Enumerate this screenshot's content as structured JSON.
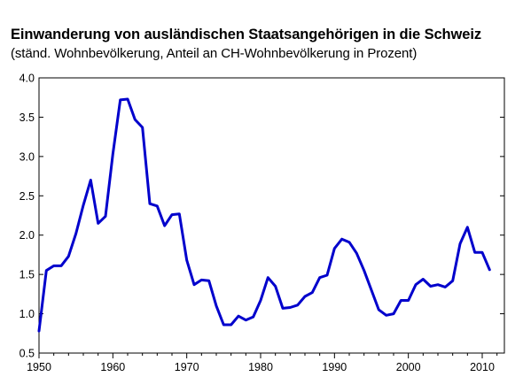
{
  "chart_data": {
    "type": "line",
    "title": "Einwanderung von ausländischen Staatsangehörigen  in die Schweiz",
    "subtitle": "(ständ. Wohnbevölkerung, Anteil an CH-Wohnbevölkerung in Prozent)",
    "xlabel": "",
    "ylabel": "",
    "xlim": [
      1950,
      2013
    ],
    "ylim": [
      0.5,
      4.0
    ],
    "x_ticks": [
      "1950",
      "1960",
      "1970",
      "1980",
      "1990",
      "2000",
      "2010"
    ],
    "y_ticks": [
      "0.5",
      "1.0",
      "1.5",
      "2.0",
      "2.5",
      "3.0",
      "3.5",
      "4.0"
    ],
    "grid": false,
    "legend": "none",
    "line_color": "#0000cc",
    "series": [
      {
        "x": [
          1950,
          1951,
          1952,
          1953,
          1954,
          1955,
          1956,
          1957,
          1958,
          1959,
          1960,
          1961,
          1962,
          1963,
          1964,
          1965,
          1966,
          1967,
          1968,
          1969,
          1970,
          1971,
          1972,
          1973,
          1974,
          1975,
          1976,
          1977,
          1978,
          1979,
          1980,
          1981,
          1982,
          1983,
          1984,
          1985,
          1986,
          1987,
          1988,
          1989,
          1990,
          1991,
          1992,
          1993,
          1994,
          1995,
          1996,
          1997,
          1998,
          1999,
          2000,
          2001,
          2002,
          2003,
          2004,
          2005,
          2006,
          2007,
          2008,
          2009,
          2010,
          2011
        ],
        "values": [
          0.78,
          1.55,
          1.61,
          1.61,
          1.73,
          2.02,
          2.38,
          2.7,
          2.15,
          2.24,
          3.03,
          3.72,
          3.73,
          3.47,
          3.37,
          2.4,
          2.37,
          2.12,
          2.26,
          2.27,
          1.68,
          1.37,
          1.43,
          1.42,
          1.1,
          0.86,
          0.86,
          0.97,
          0.92,
          0.96,
          1.17,
          1.46,
          1.35,
          1.07,
          1.08,
          1.11,
          1.22,
          1.27,
          1.46,
          1.49,
          1.83,
          1.95,
          1.91,
          1.77,
          1.55,
          1.3,
          1.05,
          0.98,
          1.0,
          1.17,
          1.17,
          1.37,
          1.44,
          1.35,
          1.37,
          1.34,
          1.42,
          1.89,
          2.1,
          1.78,
          1.78,
          1.56
        ]
      }
    ]
  }
}
